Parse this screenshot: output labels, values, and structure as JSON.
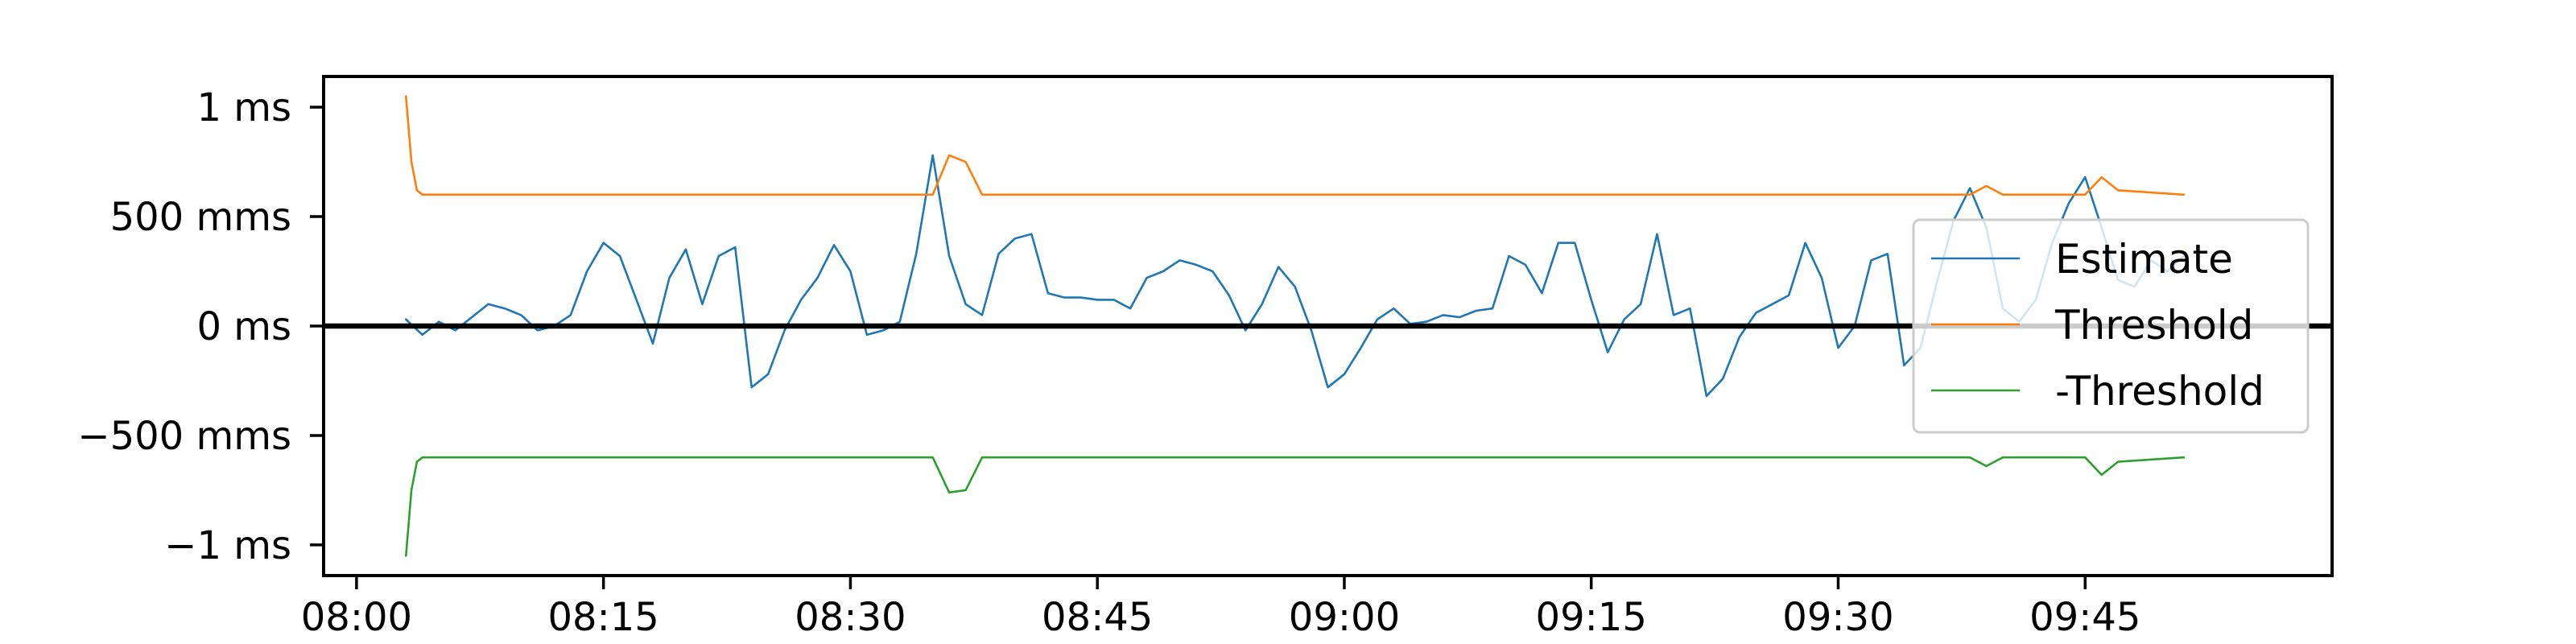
{
  "chart_data": {
    "type": "line",
    "x_axis": {
      "type": "time",
      "range": [
        "07:58",
        "10:00"
      ],
      "ticks": [
        "08:00",
        "08:15",
        "08:30",
        "08:45",
        "09:00",
        "09:15",
        "09:30",
        "09:45"
      ]
    },
    "y_axis": {
      "unit": "ms",
      "range": [
        -1.14,
        1.14
      ],
      "ticks": [
        {
          "value": 1,
          "label": "1 ms"
        },
        {
          "value": 0.5,
          "label": "500 mms"
        },
        {
          "value": 0,
          "label": "0 ms"
        },
        {
          "value": -0.5,
          "label": "−500 mms"
        },
        {
          "value": -1,
          "label": "−1 ms"
        }
      ]
    },
    "zero_line": true,
    "grid": false,
    "legend": {
      "placement": "right"
    },
    "series": [
      {
        "name": "Estimate",
        "color": "#1f77b4",
        "x": [
          "08:03",
          "08:04",
          "08:05",
          "08:06",
          "08:07",
          "08:08",
          "08:09",
          "08:10",
          "08:11",
          "08:12",
          "08:13",
          "08:14",
          "08:15",
          "08:16",
          "08:17",
          "08:18",
          "08:19",
          "08:20",
          "08:21",
          "08:22",
          "08:23",
          "08:24",
          "08:25",
          "08:26",
          "08:27",
          "08:28",
          "08:29",
          "08:30",
          "08:31",
          "08:32",
          "08:33",
          "08:34",
          "08:35",
          "08:36",
          "08:37",
          "08:38",
          "08:39",
          "08:40",
          "08:41",
          "08:42",
          "08:43",
          "08:44",
          "08:45",
          "08:46",
          "08:47",
          "08:48",
          "08:49",
          "08:50",
          "08:51",
          "08:52",
          "08:53",
          "08:54",
          "08:55",
          "08:56",
          "08:57",
          "08:58",
          "08:59",
          "09:00",
          "09:01",
          "09:02",
          "09:03",
          "09:04",
          "09:05",
          "09:06",
          "09:07",
          "09:08",
          "09:09",
          "09:10",
          "09:11",
          "09:12",
          "09:13",
          "09:14",
          "09:15",
          "09:16",
          "09:17",
          "09:18",
          "09:19",
          "09:20",
          "09:21",
          "09:22",
          "09:23",
          "09:24",
          "09:25",
          "09:26",
          "09:27",
          "09:28",
          "09:29",
          "09:30",
          "09:31",
          "09:32",
          "09:33",
          "09:34",
          "09:35",
          "09:36",
          "09:37",
          "09:38",
          "09:39",
          "09:40",
          "09:41",
          "09:42",
          "09:43",
          "09:44",
          "09:45",
          "09:46",
          "09:47",
          "09:48",
          "09:49",
          "09:50",
          "09:51"
        ],
        "y": [
          0.03,
          -0.04,
          0.02,
          -0.02,
          0.04,
          0.1,
          0.08,
          0.05,
          -0.02,
          0.0,
          0.05,
          0.25,
          0.38,
          0.32,
          0.12,
          -0.08,
          0.22,
          0.35,
          0.1,
          0.32,
          0.36,
          -0.28,
          -0.22,
          -0.02,
          0.12,
          0.22,
          0.37,
          0.25,
          -0.04,
          -0.02,
          0.02,
          0.33,
          0.78,
          0.32,
          0.1,
          0.05,
          0.33,
          0.4,
          0.42,
          0.15,
          0.13,
          0.13,
          0.12,
          0.12,
          0.08,
          0.22,
          0.25,
          0.3,
          0.28,
          0.25,
          0.14,
          -0.02,
          0.1,
          0.27,
          0.18,
          -0.02,
          -0.28,
          -0.22,
          -0.1,
          0.03,
          0.08,
          0.01,
          0.02,
          0.05,
          0.04,
          0.07,
          0.08,
          0.32,
          0.28,
          0.15,
          0.38,
          0.38,
          0.12,
          -0.12,
          0.03,
          0.1,
          0.42,
          0.05,
          0.08,
          -0.32,
          -0.24,
          -0.05,
          0.06,
          0.1,
          0.14,
          0.38,
          0.22,
          -0.1,
          0.0,
          0.3,
          0.33,
          -0.18,
          -0.1,
          0.2,
          0.48,
          0.63,
          0.45,
          0.08,
          0.02,
          0.12,
          0.38,
          0.56,
          0.68,
          0.45,
          0.21,
          0.18,
          0.3,
          0.25,
          0.32
        ]
      },
      {
        "name": "Threshold",
        "color": "#ff7f0e",
        "x": [
          "08:03",
          "08:03:20",
          "08:03:40",
          "08:04",
          "08:35",
          "08:36",
          "08:37",
          "08:38",
          "09:38",
          "09:39",
          "09:40",
          "09:45",
          "09:46",
          "09:47",
          "09:51"
        ],
        "y": [
          1.05,
          0.75,
          0.62,
          0.6,
          0.6,
          0.78,
          0.75,
          0.6,
          0.6,
          0.64,
          0.6,
          0.6,
          0.68,
          0.62,
          0.6
        ]
      },
      {
        "name": "-Threshold",
        "color": "#2ca02c",
        "x": [
          "08:03",
          "08:03:20",
          "08:03:40",
          "08:04",
          "08:35",
          "08:36",
          "08:37",
          "08:38",
          "09:38",
          "09:39",
          "09:40",
          "09:45",
          "09:46",
          "09:47",
          "09:51"
        ],
        "y": [
          -1.05,
          -0.75,
          -0.62,
          -0.6,
          -0.6,
          -0.76,
          -0.75,
          -0.6,
          -0.6,
          -0.64,
          -0.6,
          -0.6,
          -0.68,
          -0.62,
          -0.6
        ]
      }
    ]
  }
}
